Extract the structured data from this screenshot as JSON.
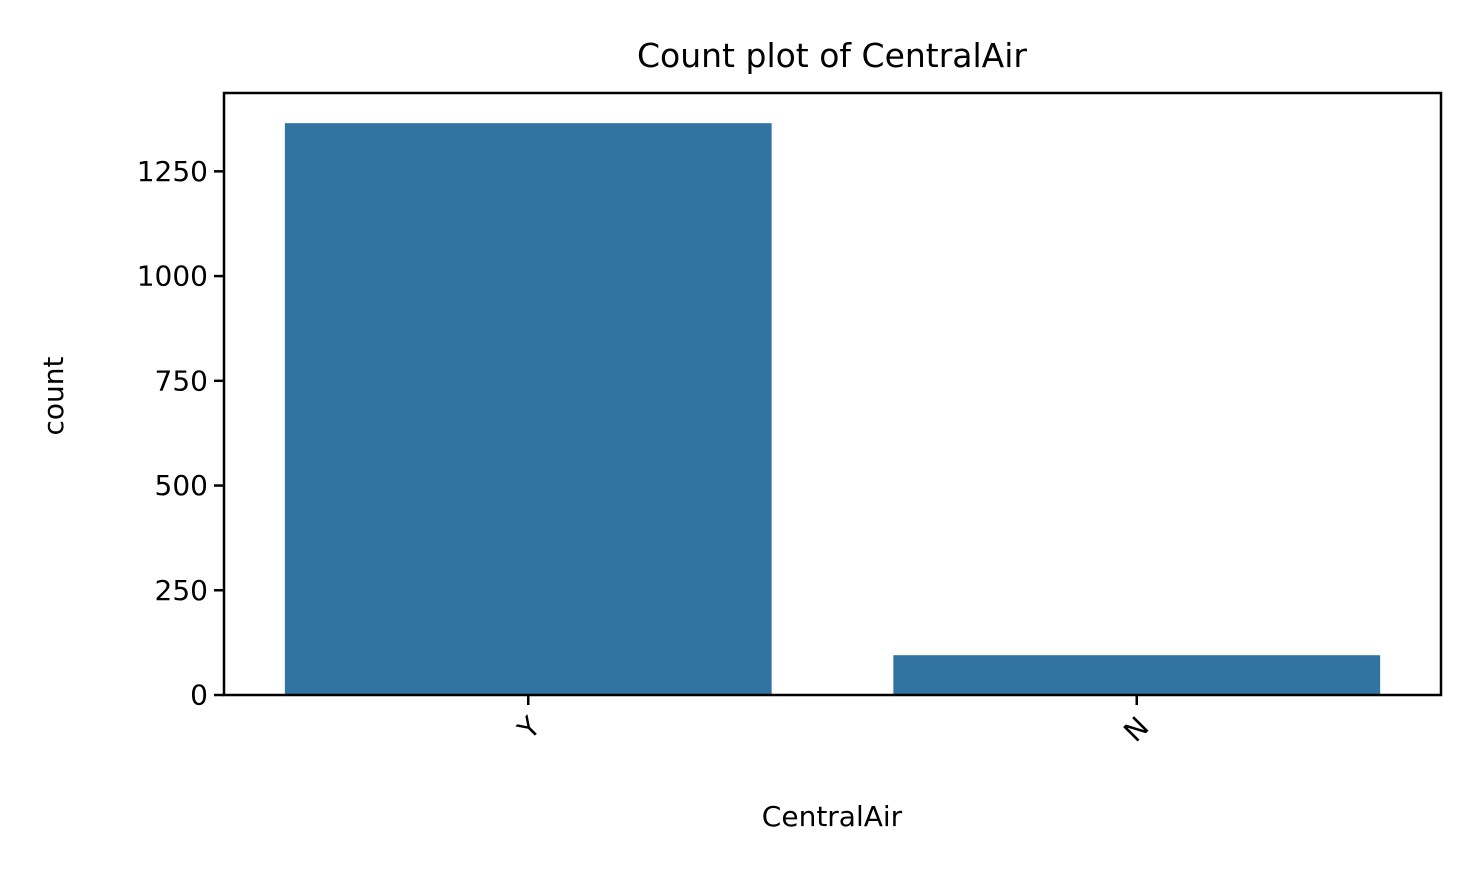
{
  "chart_data": {
    "type": "bar",
    "title": "Count plot of CentralAir",
    "xlabel": "CentralAir",
    "ylabel": "count",
    "categories": [
      "Y",
      "N"
    ],
    "values": [
      1365,
      95
    ],
    "ylim": [
      0,
      1437
    ],
    "yticks": [
      0,
      250,
      500,
      750,
      1000,
      1250
    ],
    "grid": false,
    "legend": "none",
    "bar_color": "#3274a1",
    "xtick_rotation": 45
  }
}
